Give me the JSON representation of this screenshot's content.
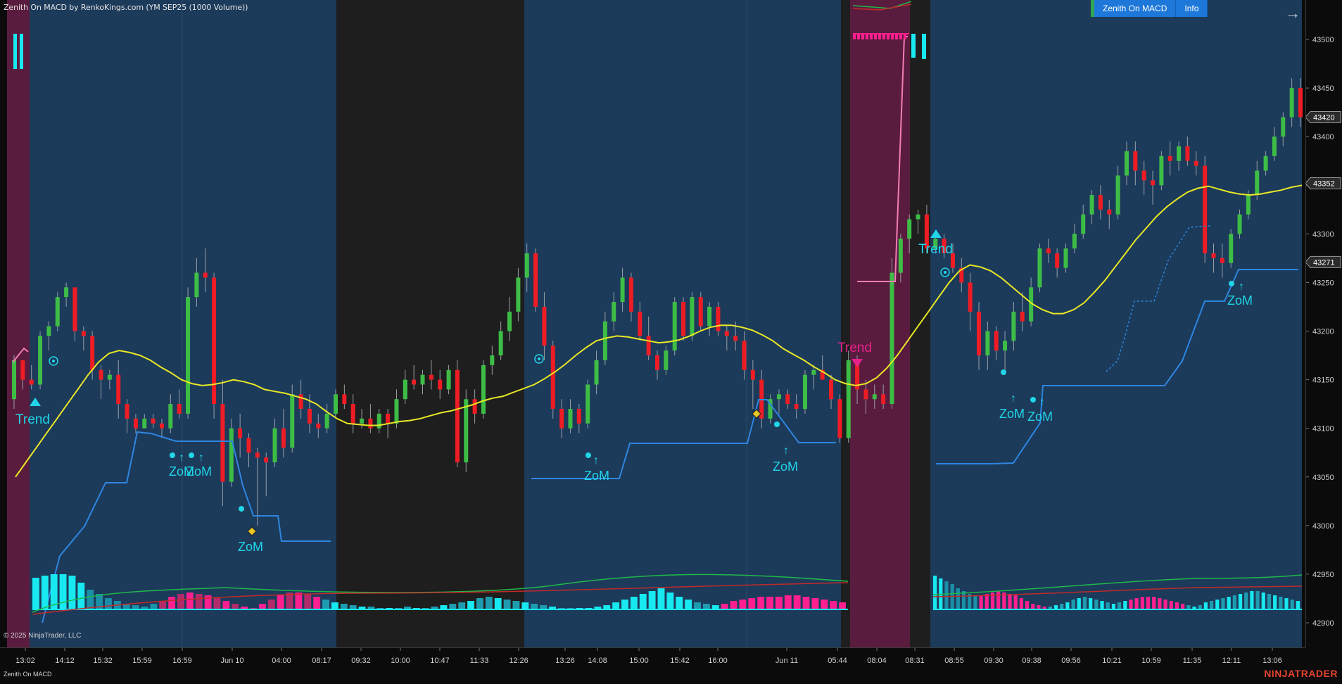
{
  "window": {
    "title": "Zenith On MACD by RenkoKings.com (YM SEP25 (1000 Volume))",
    "copyright": "© 2025 NinjaTrader, LLC",
    "indicator_label": "Zenith On MACD",
    "brand": "NINJATRADER"
  },
  "toolbar": {
    "buttons": [
      "Zenith On MACD",
      "Info"
    ],
    "nav_icon": "arrow-right-icon"
  },
  "colors": {
    "background": "#0b0b0b",
    "session_blue": "#1c3a5a",
    "session_dark": "#1e1e1e",
    "session_magenta": "#5a1c3e",
    "bull": "#3dbd46",
    "bear": "#ee1c24",
    "ema": "#e8e826",
    "stop": "#2e86e0",
    "signal": "#21d6e8",
    "trend_down": "#e8228c",
    "hist_cyan": "#18e8f0",
    "hist_magenta": "#ff1f8f",
    "macd_green": "#1fb84a",
    "macd_red": "#c02a2a"
  },
  "chart_data": {
    "type": "candlestick",
    "instrument": "YM SEP25",
    "bar_type": "1000 Volume",
    "y_ticks": [
      42900,
      42950,
      43000,
      43050,
      43100,
      43150,
      43200,
      43250,
      43300,
      43350,
      43400,
      43450,
      43500
    ],
    "price_markers": [
      43420,
      43352,
      43271
    ],
    "x_ticks": [
      "13:02",
      "14:12",
      "15:32",
      "15:59",
      "16:59",
      "Jun 10",
      "04:00",
      "08:17",
      "09:32",
      "10:00",
      "10:47",
      "11:33",
      "12:26",
      "13:26",
      "14:08",
      "15:00",
      "15:42",
      "16:00",
      "Jun 11",
      "05:44",
      "08:04",
      "08:31",
      "08:55",
      "09:30",
      "09:38",
      "09:56",
      "10:21",
      "10:59",
      "11:35",
      "12:11",
      "13:06"
    ],
    "bars": [
      [
        43130,
        43175,
        43120,
        43170
      ],
      [
        43170,
        43160,
        43140,
        43150
      ],
      [
        43150,
        43165,
        43140,
        43145
      ],
      [
        43145,
        43200,
        43140,
        43195
      ],
      [
        43195,
        43210,
        43180,
        43205
      ],
      [
        43205,
        43240,
        43200,
        43235
      ],
      [
        43235,
        43250,
        43225,
        43245
      ],
      [
        43245,
        43230,
        43190,
        43200
      ],
      [
        43200,
        43205,
        43180,
        43195
      ],
      [
        43195,
        43200,
        43150,
        43160
      ],
      [
        43160,
        43165,
        43130,
        43150
      ],
      [
        43150,
        43160,
        43140,
        43155
      ],
      [
        43155,
        43170,
        43110,
        43125
      ],
      [
        43125,
        43130,
        43095,
        43110
      ],
      [
        43110,
        43115,
        43095,
        43100
      ],
      [
        43100,
        43115,
        43100,
        43110
      ],
      [
        43110,
        43115,
        43100,
        43105
      ],
      [
        43105,
        43110,
        43090,
        43100
      ],
      [
        43100,
        43135,
        43095,
        43125
      ],
      [
        43125,
        43140,
        43110,
        43115
      ],
      [
        43115,
        43245,
        43110,
        43235
      ],
      [
        43235,
        43275,
        43225,
        43260
      ],
      [
        43260,
        43285,
        43240,
        43255
      ],
      [
        43255,
        43260,
        43110,
        43125
      ],
      [
        43125,
        43150,
        43020,
        43045
      ],
      [
        43045,
        43110,
        43040,
        43100
      ],
      [
        43100,
        43115,
        43070,
        43090
      ],
      [
        43090,
        43095,
        43060,
        43075
      ],
      [
        43075,
        43080,
        43000,
        43070
      ],
      [
        43070,
        43075,
        43030,
        43065
      ],
      [
        43065,
        43110,
        43060,
        43100
      ],
      [
        43100,
        43120,
        43070,
        43080
      ],
      [
        43080,
        43145,
        43075,
        43135
      ],
      [
        43135,
        43150,
        43110,
        43120
      ],
      [
        43120,
        43135,
        43095,
        43105
      ],
      [
        43105,
        43115,
        43090,
        43100
      ],
      [
        43100,
        43125,
        43095,
        43115
      ],
      [
        43115,
        43140,
        43110,
        43135
      ],
      [
        43135,
        43145,
        43120,
        43125
      ],
      [
        43125,
        43135,
        43095,
        43105
      ],
      [
        43105,
        43120,
        43100,
        43110
      ],
      [
        43110,
        43125,
        43095,
        43100
      ],
      [
        43100,
        43120,
        43095,
        43115
      ],
      [
        43115,
        43120,
        43090,
        43105
      ],
      [
        43105,
        43140,
        43100,
        43130
      ],
      [
        43130,
        43160,
        43125,
        43150
      ],
      [
        43150,
        43165,
        43140,
        43145
      ],
      [
        43145,
        43160,
        43135,
        43155
      ],
      [
        43155,
        43170,
        43140,
        43150
      ],
      [
        43150,
        43160,
        43130,
        43140
      ],
      [
        43140,
        43165,
        43135,
        43160
      ],
      [
        43160,
        43170,
        43060,
        43065
      ],
      [
        43065,
        43140,
        43055,
        43130
      ],
      [
        43130,
        43140,
        43105,
        43115
      ],
      [
        43115,
        43170,
        43110,
        43165
      ],
      [
        43165,
        43185,
        43155,
        43175
      ],
      [
        43175,
        43210,
        43170,
        43200
      ],
      [
        43200,
        43235,
        43190,
        43220
      ],
      [
        43220,
        43265,
        43210,
        43255
      ],
      [
        43255,
        43290,
        43240,
        43280
      ],
      [
        43280,
        43285,
        43220,
        43225
      ],
      [
        43225,
        43240,
        43170,
        43185
      ],
      [
        43185,
        43190,
        43110,
        43120
      ],
      [
        43120,
        43130,
        43090,
        43100
      ],
      [
        43100,
        43130,
        43095,
        43120
      ],
      [
        43120,
        43125,
        43095,
        43105
      ],
      [
        43105,
        43150,
        43100,
        43145
      ],
      [
        43145,
        43180,
        43135,
        43170
      ],
      [
        43170,
        43220,
        43165,
        43210
      ],
      [
        43210,
        43240,
        43200,
        43230
      ],
      [
        43230,
        43265,
        43220,
        43255
      ],
      [
        43255,
        43260,
        43210,
        43220
      ],
      [
        43220,
        43230,
        43190,
        43195
      ],
      [
        43195,
        43215,
        43170,
        43175
      ],
      [
        43175,
        43180,
        43150,
        43160
      ],
      [
        43160,
        43185,
        43155,
        43180
      ],
      [
        43180,
        43235,
        43175,
        43230
      ],
      [
        43230,
        43235,
        43190,
        43195
      ],
      [
        43195,
        43240,
        43190,
        43235
      ],
      [
        43235,
        43240,
        43200,
        43205
      ],
      [
        43205,
        43230,
        43195,
        43225
      ],
      [
        43225,
        43230,
        43195,
        43200
      ],
      [
        43200,
        43205,
        43180,
        43195
      ],
      [
        43195,
        43210,
        43180,
        43190
      ],
      [
        43190,
        43200,
        43150,
        43160
      ],
      [
        43160,
        43170,
        43120,
        43150
      ],
      [
        43150,
        43160,
        43100,
        43110
      ],
      [
        43110,
        43135,
        43105,
        43130
      ],
      [
        43130,
        43140,
        43115,
        43135
      ],
      [
        43135,
        43140,
        43120,
        43125
      ],
      [
        43125,
        43135,
        43110,
        43120
      ],
      [
        43120,
        43160,
        43115,
        43155
      ],
      [
        43155,
        43165,
        43140,
        43160
      ],
      [
        43160,
        43175,
        43150,
        43150
      ],
      [
        43150,
        43155,
        43120,
        43130
      ],
      [
        43130,
        43135,
        43085,
        43090
      ],
      [
        43090,
        43180,
        43085,
        43170
      ],
      [
        43170,
        43175,
        43125,
        43140
      ],
      [
        43140,
        43150,
        43115,
        43130
      ],
      [
        43130,
        43145,
        43120,
        43135
      ],
      [
        43135,
        43145,
        43120,
        43125
      ],
      [
        43125,
        43275,
        43120,
        43260
      ],
      [
        43260,
        43300,
        43250,
        43295
      ],
      [
        43295,
        43320,
        43280,
        43315
      ],
      [
        43315,
        43325,
        43300,
        43320
      ],
      [
        43320,
        43330,
        43280,
        43285
      ],
      [
        43285,
        43300,
        43280,
        43295
      ],
      [
        43295,
        43300,
        43275,
        43280
      ],
      [
        43280,
        43290,
        43260,
        43265
      ],
      [
        43265,
        43275,
        43240,
        43250
      ],
      [
        43250,
        43260,
        43200,
        43220
      ],
      [
        43220,
        43230,
        43160,
        43175
      ],
      [
        43175,
        43210,
        43160,
        43200
      ],
      [
        43200,
        43205,
        43170,
        43180
      ],
      [
        43180,
        43200,
        43160,
        43190
      ],
      [
        43190,
        43230,
        43180,
        43220
      ],
      [
        43220,
        43240,
        43200,
        43210
      ],
      [
        43210,
        43255,
        43205,
        43245
      ],
      [
        43245,
        43290,
        43240,
        43285
      ],
      [
        43285,
        43295,
        43270,
        43280
      ],
      [
        43280,
        43285,
        43255,
        43265
      ],
      [
        43265,
        43290,
        43260,
        43285
      ],
      [
        43285,
        43310,
        43280,
        43300
      ],
      [
        43300,
        43330,
        43295,
        43320
      ],
      [
        43320,
        43345,
        43310,
        43340
      ],
      [
        43340,
        43350,
        43315,
        43325
      ],
      [
        43325,
        43335,
        43305,
        43320
      ],
      [
        43320,
        43370,
        43315,
        43360
      ],
      [
        43360,
        43395,
        43350,
        43385
      ],
      [
        43385,
        43395,
        43350,
        43365
      ],
      [
        43365,
        43375,
        43340,
        43355
      ],
      [
        43355,
        43365,
        43330,
        43350
      ],
      [
        43350,
        43385,
        43345,
        43380
      ],
      [
        43380,
        43395,
        43360,
        43375
      ],
      [
        43375,
        43395,
        43365,
        43390
      ],
      [
        43390,
        43400,
        43370,
        43375
      ],
      [
        43375,
        43385,
        43360,
        43370
      ],
      [
        43370,
        43380,
        43270,
        43280
      ],
      [
        43280,
        43290,
        43260,
        43275
      ],
      [
        43275,
        43290,
        43255,
        43270
      ],
      [
        43270,
        43305,
        43265,
        43300
      ],
      [
        43300,
        43325,
        43295,
        43320
      ],
      [
        43320,
        43345,
        43315,
        43340
      ],
      [
        43340,
        43375,
        43335,
        43365
      ],
      [
        43365,
        43385,
        43360,
        43380
      ],
      [
        43380,
        43410,
        43375,
        43400
      ],
      [
        43400,
        43425,
        43390,
        43420
      ],
      [
        43420,
        43460,
        43410,
        43450
      ],
      [
        43450,
        43460,
        43410,
        43420
      ]
    ],
    "ema": [
      43050,
      43065,
      43080,
      43095,
      43110,
      43125,
      43140,
      43155,
      43168,
      43177,
      43180,
      43178,
      43175,
      43170,
      43163,
      43157,
      43150,
      43146,
      43144,
      43145,
      43147,
      43150,
      43148,
      43145,
      43140,
      43138,
      43136,
      43133,
      43130,
      43125,
      43117,
      43110,
      43105,
      43104,
      43103,
      43103,
      43105,
      43107,
      43108,
      43110,
      43113,
      43116,
      43118,
      43121,
      43124,
      43128,
      43131,
      43133,
      43137,
      43141,
      43145,
      43151,
      43158,
      43166,
      43175,
      43183,
      43190,
      43193,
      43195,
      43194,
      43192,
      43190,
      43188,
      43189,
      43191,
      43195,
      43200,
      43204,
      43206,
      43206,
      43204,
      43201,
      43196,
      43190,
      43182,
      43176,
      43170,
      43163,
      43157,
      43150,
      43146,
      43144,
      43146,
      43152,
      43162,
      43175,
      43190,
      43205,
      43220,
      43235,
      43250,
      43262,
      43268,
      43266,
      43262,
      43255,
      43246,
      43237,
      43228,
      43222,
      43218,
      43218,
      43222,
      43229,
      43240,
      43252,
      43266,
      43280,
      43294,
      43306,
      43318,
      43328,
      43336,
      43343,
      43347,
      43349,
      43346,
      43343,
      43341,
      43340,
      43341,
      43343,
      43345,
      43348,
      43350
    ]
  },
  "markers": {
    "trend_up_1": "Trend",
    "trend_up_2": "Trend",
    "trend_down": "Trend",
    "zom": "ZoM"
  }
}
